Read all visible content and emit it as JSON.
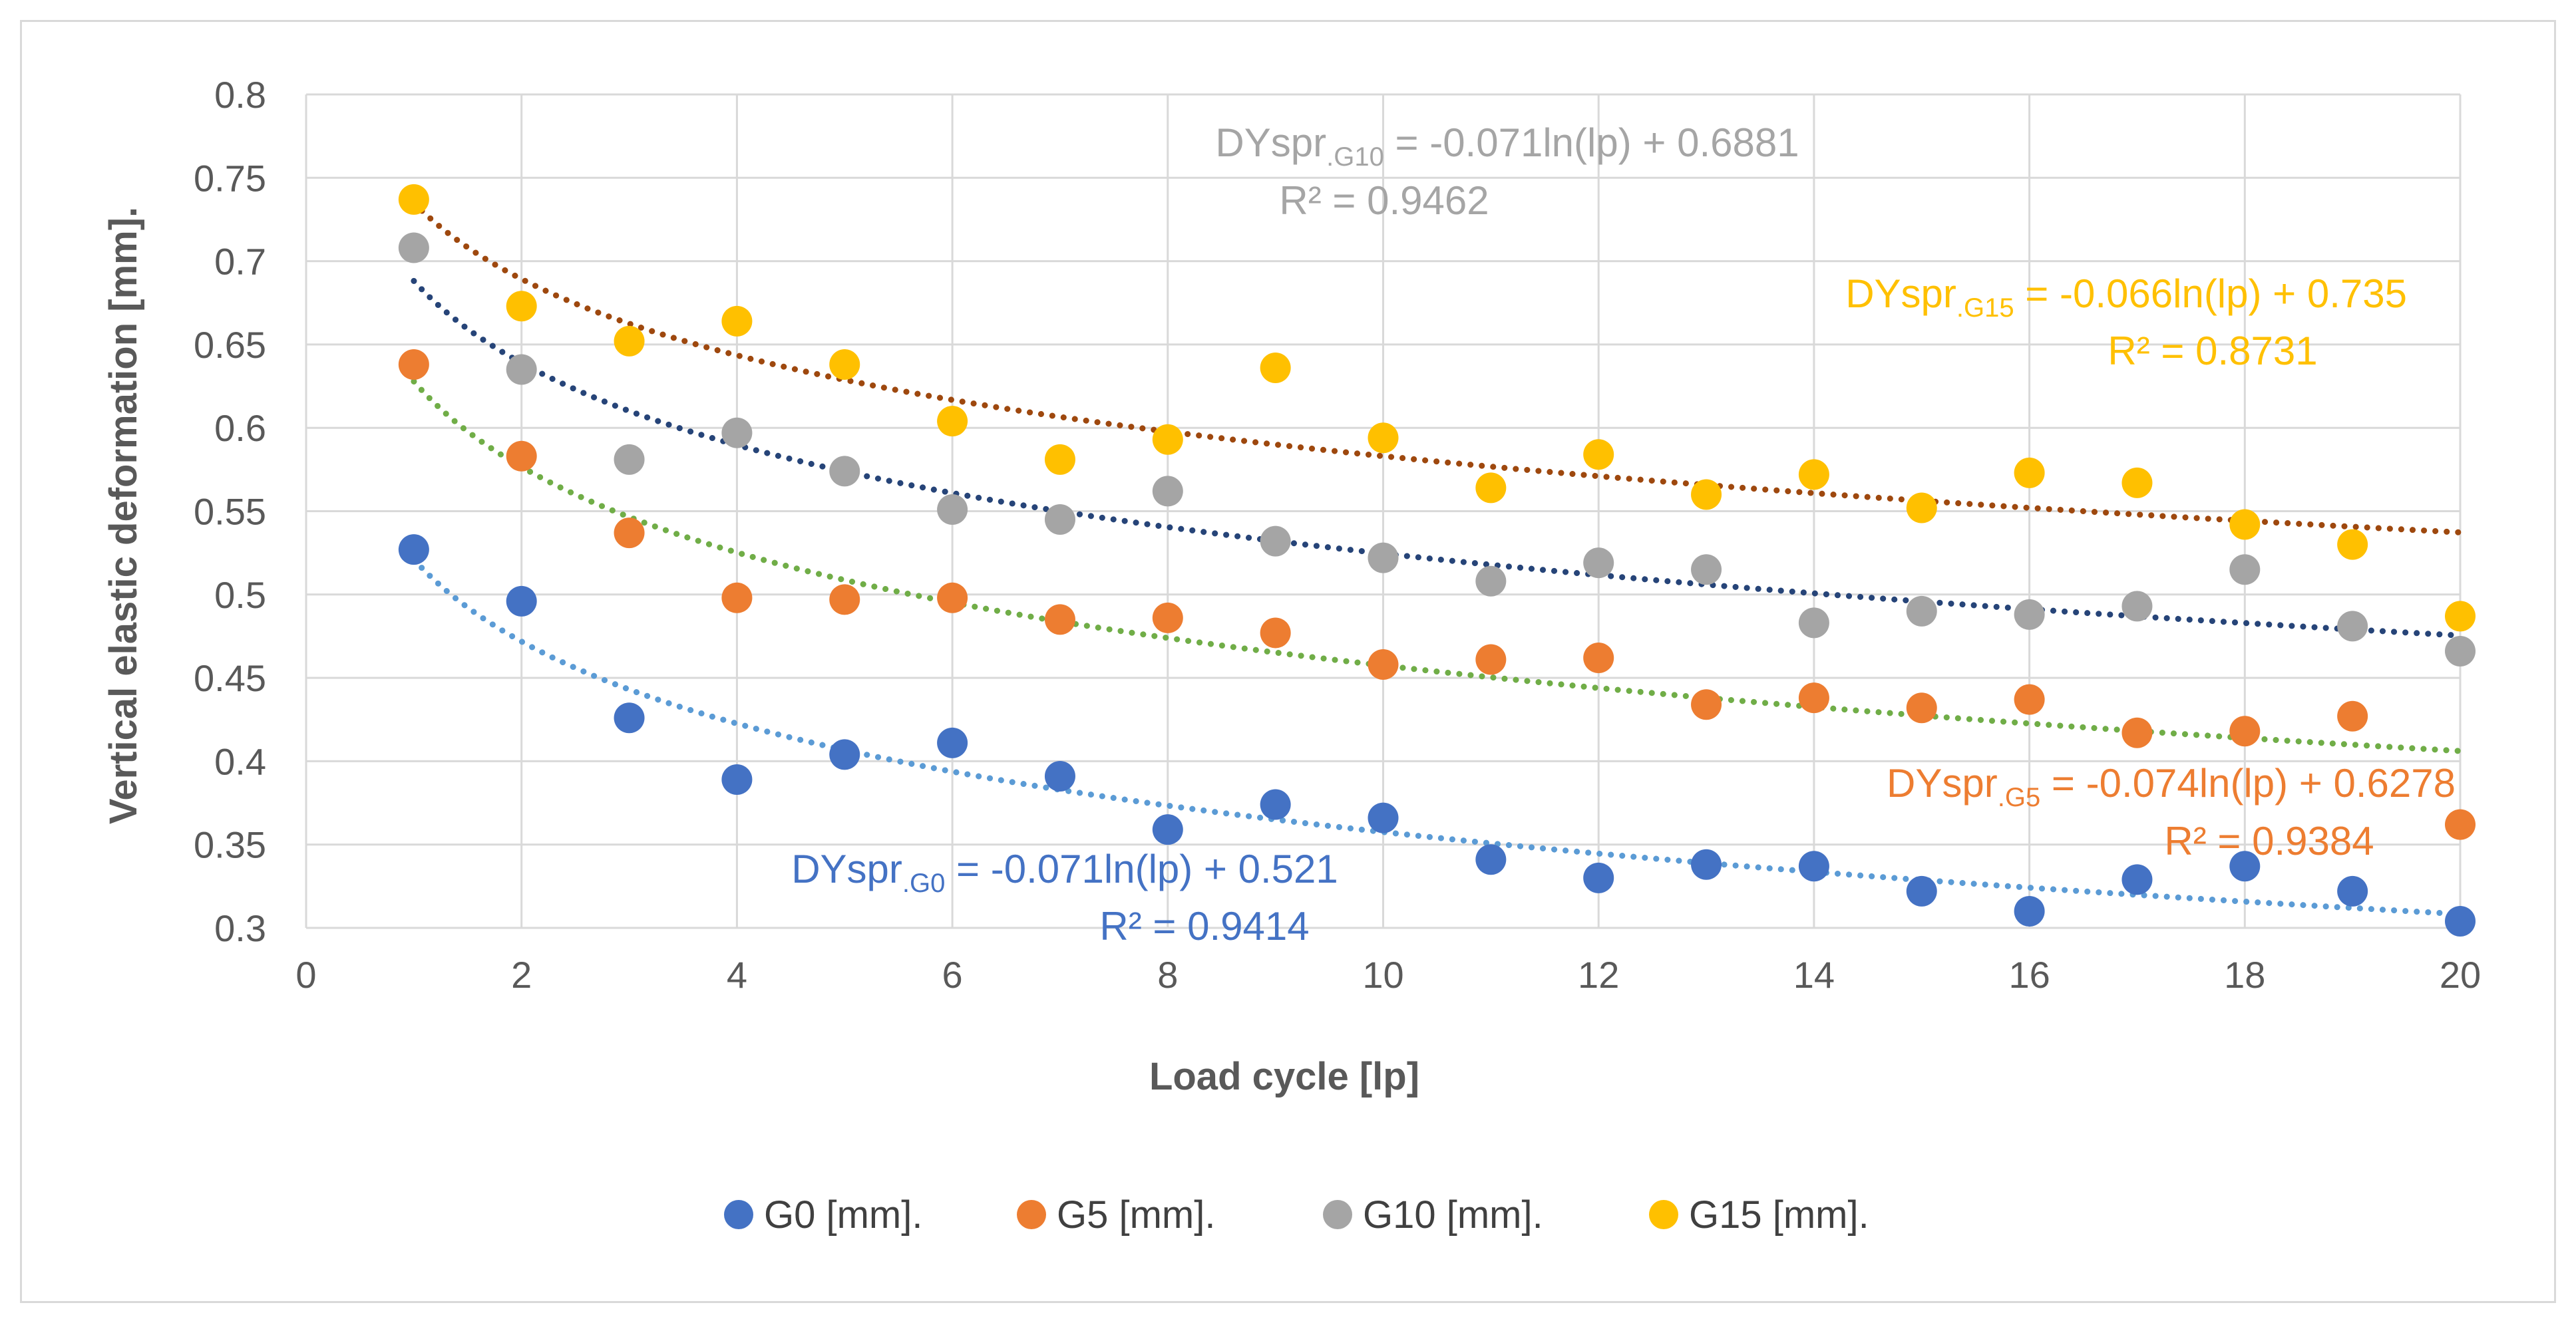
{
  "chart_data": {
    "type": "scatter",
    "title": "",
    "xlabel": "Load cycle [lp]",
    "ylabel": "Vertical elastic deformation [mm].",
    "xlim": [
      0,
      20
    ],
    "ylim": [
      0.3,
      0.8
    ],
    "x_ticks": [
      "0",
      "2",
      "4",
      "6",
      "8",
      "10",
      "12",
      "14",
      "16",
      "18",
      "20"
    ],
    "y_ticks": [
      "0.3",
      "0.35",
      "0.4",
      "0.45",
      "0.5",
      "0.55",
      "0.6",
      "0.65",
      "0.7",
      "0.75",
      "0.8"
    ],
    "grid": true,
    "legend_position": "bottom",
    "x": [
      1,
      2,
      3,
      4,
      5,
      6,
      7,
      8,
      9,
      10,
      11,
      12,
      13,
      14,
      15,
      16,
      17,
      18,
      19,
      20
    ],
    "series": [
      {
        "name": "G0 [mm].",
        "color": "#4472c4",
        "values": [
          0.527,
          0.496,
          0.426,
          0.389,
          0.404,
          0.411,
          0.391,
          0.359,
          0.374,
          0.366,
          0.341,
          0.33,
          0.338,
          0.337,
          0.322,
          0.31,
          0.329,
          0.337,
          0.322,
          0.304
        ],
        "trend": {
          "a": -0.071,
          "b": 0.521,
          "color": "#5b9bd5"
        },
        "equation": {
          "prefix": "DYspr",
          "sub": ".G0",
          "rest": " = -0.071ln(lp) + 0.521",
          "r2": "R² = 0.9414",
          "color": "#4472c4"
        }
      },
      {
        "name": "G5 [mm].",
        "color": "#ed7d31",
        "values": [
          0.638,
          0.583,
          0.537,
          0.498,
          0.497,
          0.498,
          0.485,
          0.486,
          0.477,
          0.458,
          0.461,
          0.462,
          0.434,
          0.438,
          0.432,
          0.437,
          0.417,
          0.418,
          0.427,
          0.362
        ],
        "trend": {
          "a": -0.074,
          "b": 0.6278,
          "color": "#70ad47"
        },
        "equation": {
          "prefix": "DYspr",
          "sub": ".G5",
          "rest": " = -0.074ln(lp) + 0.6278",
          "r2": "R² = 0.9384",
          "color": "#ed7d31"
        }
      },
      {
        "name": "G10 [mm].",
        "color": "#a5a5a5",
        "values": [
          0.708,
          0.635,
          0.581,
          0.597,
          0.574,
          0.551,
          0.545,
          0.562,
          0.532,
          0.522,
          0.508,
          0.519,
          0.515,
          0.483,
          0.49,
          0.488,
          0.493,
          0.515,
          0.481,
          0.466
        ],
        "trend": {
          "a": -0.071,
          "b": 0.6881,
          "color": "#264478"
        },
        "equation": {
          "prefix": "DYspr",
          "sub": ".G10",
          "rest": " = -0.071ln(lp) + 0.6881",
          "r2": "R² = 0.9462",
          "color": "#a5a5a5"
        }
      },
      {
        "name": "G15 [mm].",
        "color": "#ffc000",
        "values": [
          0.737,
          0.673,
          0.652,
          0.664,
          0.638,
          0.604,
          0.581,
          0.593,
          0.636,
          0.594,
          0.564,
          0.584,
          0.56,
          0.572,
          0.552,
          0.573,
          0.567,
          0.542,
          0.53,
          0.487
        ],
        "trend": {
          "a": -0.066,
          "b": 0.735,
          "color": "#9e480e"
        },
        "equation": {
          "prefix": "DYspr",
          "sub": ".G15",
          "rest": " = -0.066ln(lp) + 0.735",
          "r2": "R² = 0.8731",
          "color": "#ffc000"
        }
      }
    ]
  }
}
